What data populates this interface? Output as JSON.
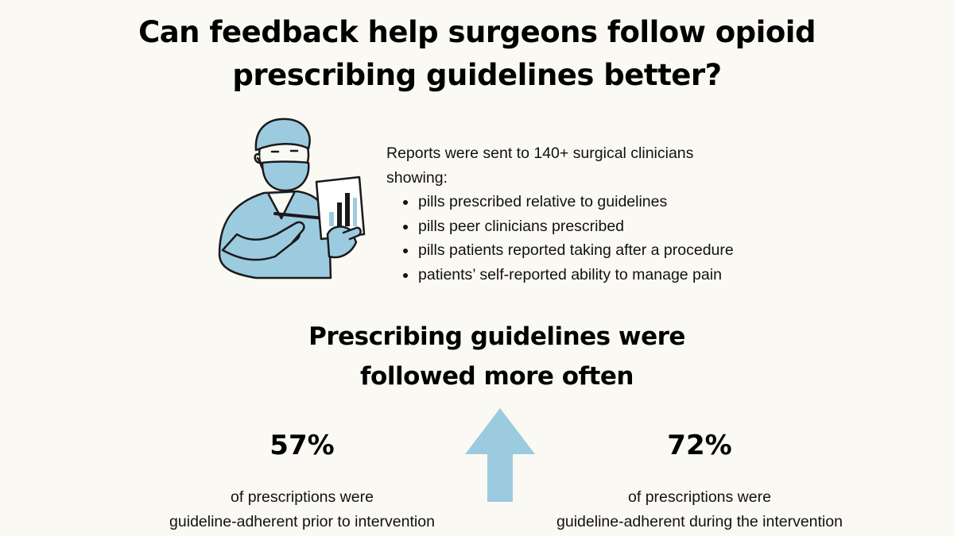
{
  "title": {
    "line1": "Can feedback help surgeons follow opioid",
    "line2": "prescribing guidelines better?"
  },
  "reports": {
    "intro_line1": "Reports were sent to 140+ surgical clinicians",
    "intro_line2": "showing:",
    "items": [
      "pills prescribed relative to guidelines",
      "pills peer clinicians prescribed",
      "pills patients reported taking after a procedure",
      "patients’ self-reported ability to manage pain"
    ]
  },
  "headline": {
    "line1": "Prescribing guidelines were",
    "line2": "followed more often"
  },
  "stats": {
    "before": {
      "percent": "57%",
      "desc_line1": "of prescriptions were",
      "desc_line2": "guideline-adherent prior to intervention"
    },
    "after": {
      "percent": "72%",
      "desc_line1": "of prescriptions were",
      "desc_line2": "guideline-adherent during the intervention"
    }
  },
  "colors": {
    "background": "#fbf9f4",
    "accent_blue": "#9ccbe0",
    "ink": "#111111"
  },
  "icons": {
    "illustration": "surgeon-with-chart-illustration",
    "arrow": "up-arrow-icon"
  }
}
